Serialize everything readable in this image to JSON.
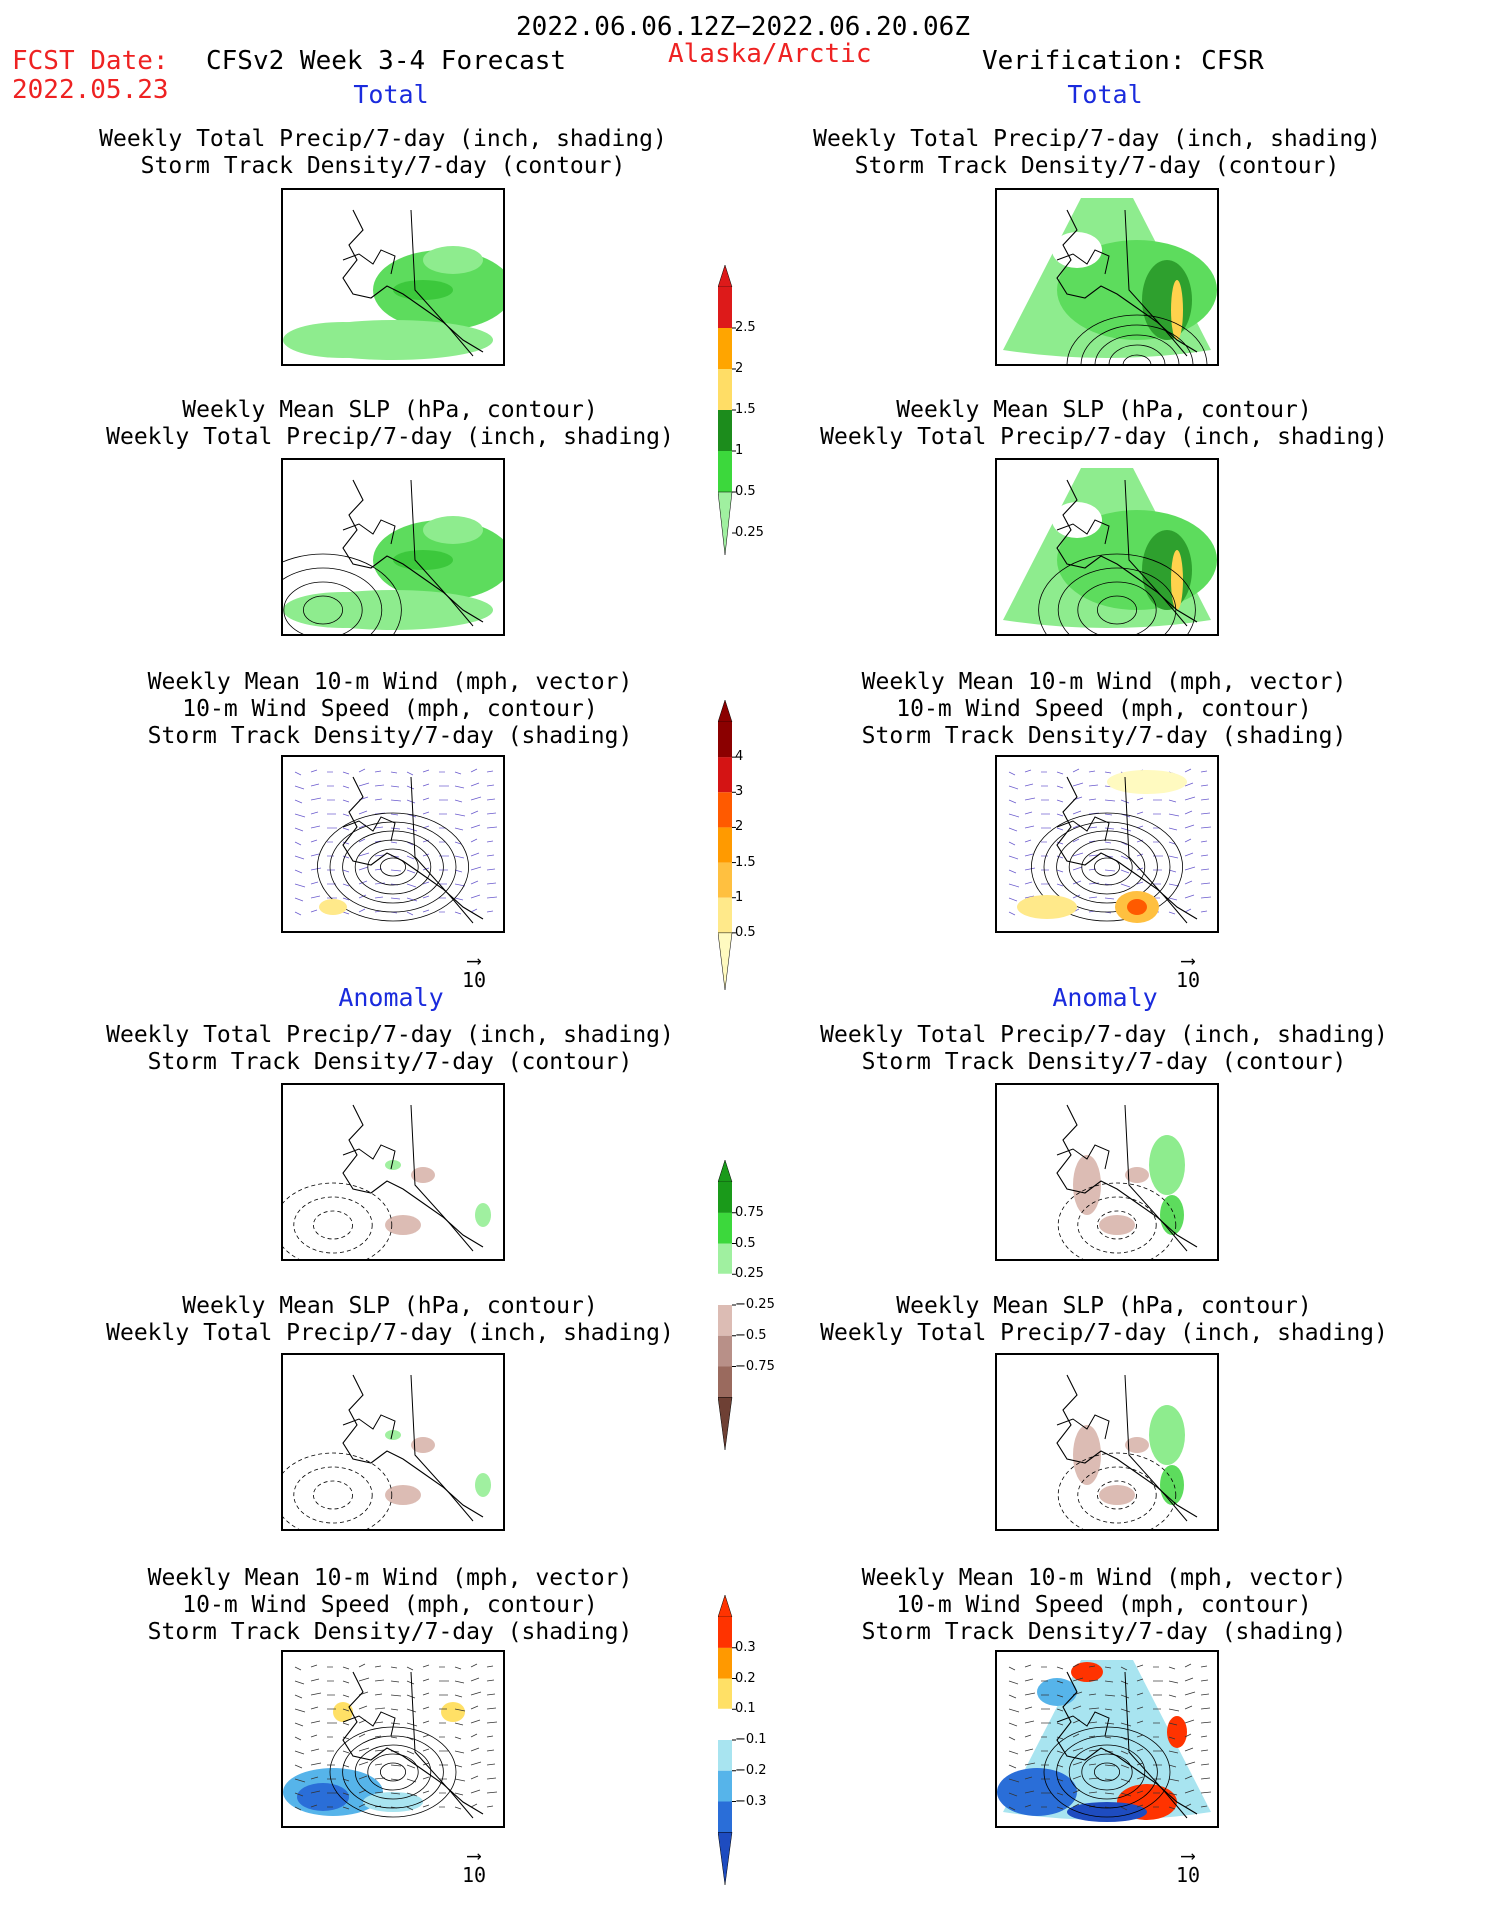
{
  "header": {
    "date_range": "2022.06.06.12Z−2022.06.20.06Z",
    "fcst_label": "FCST Date:",
    "fcst_date": "2022.05.23",
    "forecast_name": "CFSv2 Week 3-4 Forecast",
    "region": "Alaska/Arctic",
    "verification": "Verification: CFSR"
  },
  "sections": {
    "total_left": "Total",
    "total_right": "Total",
    "anomaly_left": "Anomaly",
    "anomaly_right": "Anomaly"
  },
  "panel_titles": {
    "precip_storm": [
      "Weekly Total Precip/7-day (inch, shading)",
      "Storm Track Density/7-day (contour)"
    ],
    "slp_precip": [
      "Weekly Mean SLP (hPa, contour)",
      "Weekly Total Precip/7-day (inch, shading)"
    ],
    "wind_storm": [
      "Weekly Mean 10-m Wind (mph, vector)",
      "10-m Wind Speed (mph, contour)",
      "Storm Track Density/7-day (shading)"
    ]
  },
  "vector_ref": {
    "label": "10"
  },
  "colorbars": {
    "precip_total": {
      "labels": [
        "2.5",
        "2",
        "1.5",
        "1",
        "0.5",
        "0.25"
      ],
      "colors": [
        "#dd1a1a",
        "#ffa500",
        "#ffdd66",
        "#1c8c1c",
        "#3cd83c",
        "#a0f0a0"
      ]
    },
    "storm_total": {
      "labels": [
        "4",
        "3",
        "2",
        "1.5",
        "1",
        "0.5"
      ],
      "colors": [
        "#8b0000",
        "#d41414",
        "#ff5a00",
        "#ff9a00",
        "#ffc040",
        "#ffe98a",
        "#fffac0"
      ]
    },
    "precip_anom": {
      "labels": [
        "0.75",
        "0.5",
        "0.25",
        "−0.25",
        "−0.5",
        "−0.75"
      ],
      "colors": [
        "#1a9a1a",
        "#3cd83c",
        "#a0f0a0",
        "#ffffff",
        "#dcbcb4",
        "#b89088",
        "#9a6a5e",
        "#6e4034"
      ]
    },
    "storm_anom": {
      "labels": [
        "0.3",
        "0.2",
        "0.1",
        "−0.1",
        "−0.2",
        "−0.3"
      ],
      "colors": [
        "#ff3300",
        "#ff9900",
        "#ffe066",
        "#ffffff",
        "#a8e4f0",
        "#56b4ea",
        "#2a6ed8",
        "#1e4cc0"
      ]
    }
  }
}
